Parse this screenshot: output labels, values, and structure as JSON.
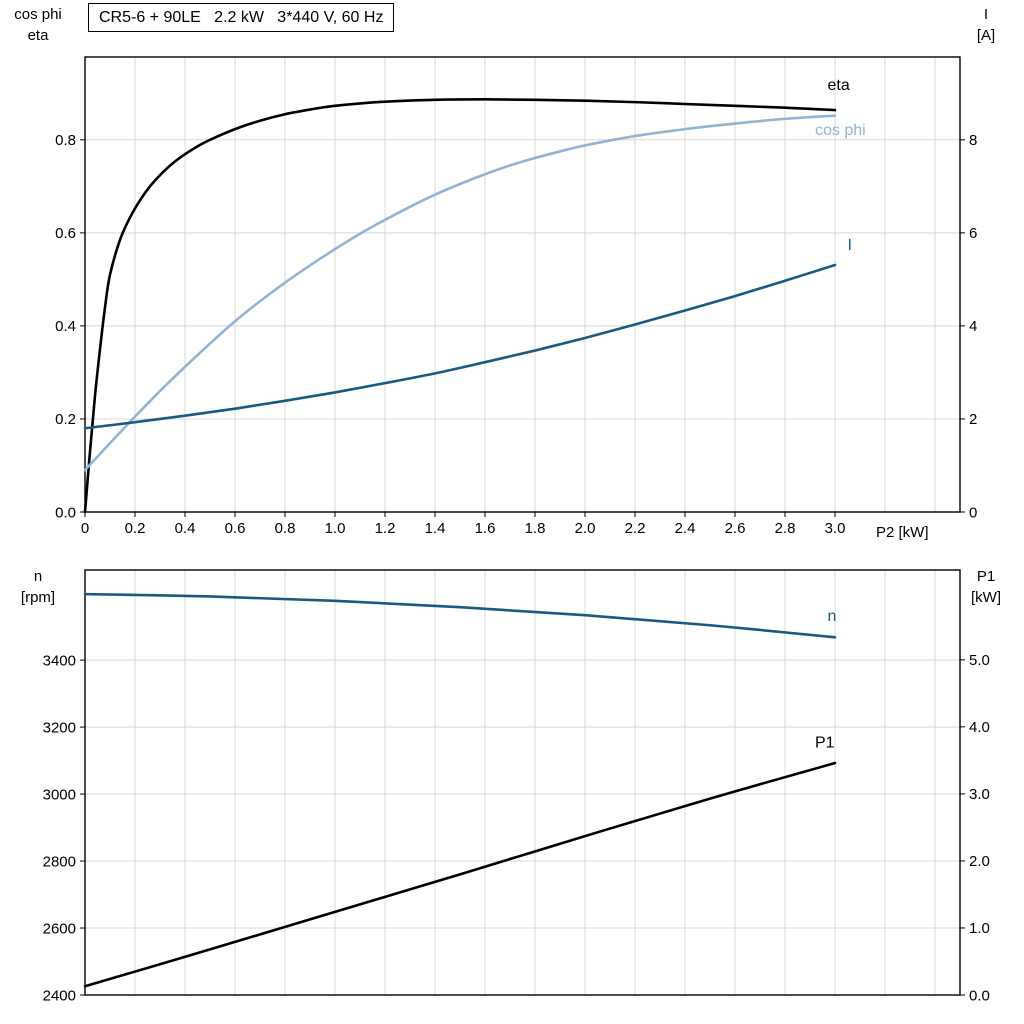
{
  "title_box": "CR5-6 + 90LE   2.2 kW   3*440 V, 60 Hz",
  "colors": {
    "grid": "#d8d8d8",
    "axis": "#000000",
    "background": "#ffffff",
    "black_curve": "#000000",
    "dark_blue": "#1a5a80",
    "light_blue": "#94b3d0"
  },
  "chart_data": [
    {
      "type": "line",
      "x_axis": {
        "label": "P2 [kW]",
        "range": [
          0,
          3.5
        ],
        "grid_step": 0.2,
        "ticks": [
          0,
          0.2,
          0.4,
          0.6,
          0.8,
          1.0,
          1.2,
          1.4,
          1.6,
          1.8,
          2.0,
          2.2,
          2.4,
          2.6,
          2.8,
          3.0
        ],
        "tick_labels": [
          "0",
          "0.2",
          "0.4",
          "0.6",
          "0.8",
          "1.0",
          "1.2",
          "1.4",
          "1.6",
          "1.8",
          "2.0",
          "2.2",
          "2.4",
          "2.6",
          "2.8",
          "3.0"
        ],
        "show_tick_labels": true
      },
      "y_left": {
        "title_lines": [
          "cos phi",
          "eta"
        ],
        "range": [
          0,
          0.978
        ],
        "ticks": [
          0,
          0.2,
          0.4,
          0.6,
          0.8
        ],
        "tick_labels": [
          "0.0",
          "0.2",
          "0.4",
          "0.6",
          "0.8"
        ]
      },
      "y_right": {
        "title_lines": [
          "I",
          "[A]"
        ],
        "range": [
          0,
          9.78
        ],
        "ticks": [
          0,
          2,
          4,
          6,
          8
        ],
        "tick_labels": [
          "0",
          "2",
          "4",
          "6",
          "8"
        ]
      },
      "series": [
        {
          "name": "eta",
          "axis": "left",
          "color": "#000000",
          "width": 2.6,
          "label": {
            "text": "eta",
            "x": 2.97,
            "y": 0.907,
            "anchor": "start"
          },
          "points": [
            [
              0,
              0
            ],
            [
              0.02,
              0.13
            ],
            [
              0.04,
              0.25
            ],
            [
              0.06,
              0.35
            ],
            [
              0.08,
              0.44
            ],
            [
              0.1,
              0.51
            ],
            [
              0.14,
              0.585
            ],
            [
              0.18,
              0.633
            ],
            [
              0.22,
              0.67
            ],
            [
              0.26,
              0.7
            ],
            [
              0.3,
              0.724
            ],
            [
              0.35,
              0.749
            ],
            [
              0.4,
              0.769
            ],
            [
              0.45,
              0.786
            ],
            [
              0.5,
              0.8
            ],
            [
              0.6,
              0.823
            ],
            [
              0.7,
              0.841
            ],
            [
              0.8,
              0.855
            ],
            [
              0.9,
              0.865
            ],
            [
              1,
              0.873
            ],
            [
              1.2,
              0.882
            ],
            [
              1.4,
              0.886
            ],
            [
              1.6,
              0.887
            ],
            [
              1.8,
              0.886
            ],
            [
              2,
              0.884
            ],
            [
              2.2,
              0.881
            ],
            [
              2.4,
              0.877
            ],
            [
              2.6,
              0.873
            ],
            [
              2.8,
              0.869
            ],
            [
              3,
              0.864
            ]
          ]
        },
        {
          "name": "cos phi",
          "axis": "left",
          "color": "#94b3d0",
          "width": 2.6,
          "label": {
            "text": "cos phi",
            "x": 2.92,
            "y": 0.81,
            "anchor": "start"
          },
          "points": [
            [
              0,
              0.09
            ],
            [
              0.1,
              0.148
            ],
            [
              0.2,
              0.205
            ],
            [
              0.3,
              0.26
            ],
            [
              0.4,
              0.312
            ],
            [
              0.5,
              0.362
            ],
            [
              0.6,
              0.41
            ],
            [
              0.7,
              0.453
            ],
            [
              0.8,
              0.493
            ],
            [
              0.9,
              0.53
            ],
            [
              1,
              0.565
            ],
            [
              1.1,
              0.598
            ],
            [
              1.2,
              0.628
            ],
            [
              1.3,
              0.656
            ],
            [
              1.4,
              0.682
            ],
            [
              1.5,
              0.705
            ],
            [
              1.6,
              0.726
            ],
            [
              1.7,
              0.745
            ],
            [
              1.8,
              0.761
            ],
            [
              1.9,
              0.775
            ],
            [
              2,
              0.788
            ],
            [
              2.2,
              0.808
            ],
            [
              2.4,
              0.823
            ],
            [
              2.6,
              0.835
            ],
            [
              2.8,
              0.845
            ],
            [
              3,
              0.852
            ]
          ]
        },
        {
          "name": "I",
          "axis": "right",
          "color": "#1a5a80",
          "width": 2.6,
          "label": {
            "text": "I",
            "x": 3.05,
            "y": 5.63,
            "anchor": "start"
          },
          "points": [
            [
              0,
              1.8
            ],
            [
              0.2,
              1.93
            ],
            [
              0.4,
              2.07
            ],
            [
              0.6,
              2.22
            ],
            [
              0.8,
              2.39
            ],
            [
              1,
              2.57
            ],
            [
              1.2,
              2.77
            ],
            [
              1.4,
              2.98
            ],
            [
              1.6,
              3.22
            ],
            [
              1.8,
              3.47
            ],
            [
              2,
              3.74
            ],
            [
              2.2,
              4.03
            ],
            [
              2.4,
              4.33
            ],
            [
              2.6,
              4.64
            ],
            [
              2.8,
              4.97
            ],
            [
              3,
              5.31
            ]
          ]
        }
      ]
    },
    {
      "type": "line",
      "x_axis": {
        "label": "",
        "range": [
          0,
          3.5
        ],
        "grid_step": 0.2,
        "ticks": [],
        "tick_labels": [],
        "show_tick_labels": false
      },
      "y_left": {
        "title_lines": [
          "n",
          "[rpm]"
        ],
        "range": [
          2400,
          3669
        ],
        "ticks": [
          2400,
          2600,
          2800,
          3000,
          3200,
          3400
        ],
        "tick_labels": [
          "2400",
          "2600",
          "2800",
          "3000",
          "3200",
          "3400"
        ]
      },
      "y_right": {
        "title_lines": [
          "P1",
          "[kW]"
        ],
        "range": [
          0,
          6.34
        ],
        "ticks": [
          0,
          1,
          2,
          3,
          4,
          5
        ],
        "tick_labels": [
          "0.0",
          "1.0",
          "2.0",
          "3.0",
          "4.0",
          "5.0"
        ]
      },
      "series": [
        {
          "name": "n",
          "axis": "left",
          "color": "#1a5a80",
          "width": 2.6,
          "label": {
            "text": "n",
            "x": 2.97,
            "y": 3516,
            "anchor": "start"
          },
          "points": [
            [
              0,
              3597
            ],
            [
              0.5,
              3590
            ],
            [
              1,
              3577
            ],
            [
              1.5,
              3558
            ],
            [
              2,
              3534
            ],
            [
              2.5,
              3504
            ],
            [
              3,
              3468
            ]
          ]
        },
        {
          "name": "P1",
          "axis": "right",
          "color": "#000000",
          "width": 2.6,
          "label": {
            "text": "P1",
            "x": 2.92,
            "y": 3.69,
            "anchor": "start"
          },
          "points": [
            [
              0,
              0.13
            ],
            [
              0.5,
              0.68
            ],
            [
              1,
              1.24
            ],
            [
              1.5,
              1.8
            ],
            [
              2,
              2.37
            ],
            [
              2.5,
              2.93
            ],
            [
              3,
              3.46
            ]
          ]
        }
      ]
    }
  ]
}
